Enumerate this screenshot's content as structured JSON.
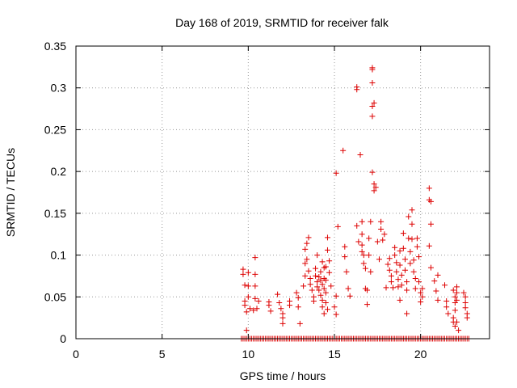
{
  "chart_data": {
    "type": "scatter",
    "title": "Day 168 of 2019, SRMTID for receiver falk",
    "xlabel": "GPS time / hours",
    "ylabel": "SRMTID / TECUs",
    "xlim": [
      0,
      24
    ],
    "ylim": [
      0,
      0.35
    ],
    "xticks": [
      0,
      5,
      10,
      15,
      20
    ],
    "yticks": [
      0,
      0.05,
      0.1,
      0.15,
      0.2,
      0.25,
      0.3,
      0.35
    ],
    "xtick_labels": [
      "0",
      "5",
      "10",
      "15",
      "20"
    ],
    "ytick_labels": [
      "0",
      "0.05",
      "0.1",
      "0.15",
      "0.2",
      "0.25",
      "0.3",
      "0.35"
    ],
    "grid": true,
    "marker": "+",
    "color": "#dd0000",
    "zero_band": {
      "x_start": 9.6,
      "x_end": 22.8,
      "step": 0.1,
      "y": 0
    },
    "points": [
      [
        9.7,
        0.083
      ],
      [
        9.7,
        0.077
      ],
      [
        9.8,
        0.064
      ],
      [
        9.8,
        0.045
      ],
      [
        9.8,
        0.04
      ],
      [
        9.9,
        0.032
      ],
      [
        9.9,
        0.01
      ],
      [
        10.0,
        0.079
      ],
      [
        10.0,
        0.063
      ],
      [
        10.0,
        0.05
      ],
      [
        10.1,
        0.036
      ],
      [
        10.4,
        0.097
      ],
      [
        10.4,
        0.077
      ],
      [
        10.4,
        0.063
      ],
      [
        10.4,
        0.048
      ],
      [
        10.3,
        0.034
      ],
      [
        10.5,
        0.036
      ],
      [
        10.6,
        0.045
      ],
      [
        11.2,
        0.044
      ],
      [
        11.2,
        0.04
      ],
      [
        11.3,
        0.033
      ],
      [
        11.7,
        0.053
      ],
      [
        11.8,
        0.043
      ],
      [
        11.9,
        0.036
      ],
      [
        12.0,
        0.03
      ],
      [
        12.0,
        0.025
      ],
      [
        12.0,
        0.018
      ],
      [
        12.4,
        0.045
      ],
      [
        12.4,
        0.04
      ],
      [
        12.8,
        0.055
      ],
      [
        12.9,
        0.049
      ],
      [
        12.9,
        0.038
      ],
      [
        13.0,
        0.018
      ],
      [
        13.2,
        0.063
      ],
      [
        13.3,
        0.075
      ],
      [
        13.3,
        0.09
      ],
      [
        13.3,
        0.107
      ],
      [
        13.4,
        0.114
      ],
      [
        13.5,
        0.121
      ],
      [
        13.4,
        0.095
      ],
      [
        13.5,
        0.081
      ],
      [
        13.6,
        0.072
      ],
      [
        13.6,
        0.065
      ],
      [
        13.7,
        0.058
      ],
      [
        13.8,
        0.05
      ],
      [
        13.8,
        0.045
      ],
      [
        13.9,
        0.084
      ],
      [
        13.9,
        0.075
      ],
      [
        14.0,
        0.068
      ],
      [
        14.0,
        0.1
      ],
      [
        14.0,
        0.062
      ],
      [
        14.1,
        0.074
      ],
      [
        14.1,
        0.058
      ],
      [
        14.2,
        0.08
      ],
      [
        14.2,
        0.07
      ],
      [
        14.2,
        0.052
      ],
      [
        14.3,
        0.092
      ],
      [
        14.3,
        0.065
      ],
      [
        14.3,
        0.046
      ],
      [
        14.3,
        0.038
      ],
      [
        14.4,
        0.085
      ],
      [
        14.4,
        0.072
      ],
      [
        14.4,
        0.06
      ],
      [
        14.4,
        0.03
      ],
      [
        14.5,
        0.086
      ],
      [
        14.5,
        0.07
      ],
      [
        14.5,
        0.055
      ],
      [
        14.6,
        0.121
      ],
      [
        14.6,
        0.106
      ],
      [
        14.5,
        0.043
      ],
      [
        14.6,
        0.035
      ],
      [
        14.7,
        0.093
      ],
      [
        14.7,
        0.079
      ],
      [
        14.8,
        0.063
      ],
      [
        15.0,
        0.038
      ],
      [
        15.1,
        0.051
      ],
      [
        15.1,
        0.029
      ],
      [
        15.2,
        0.134
      ],
      [
        15.1,
        0.198
      ],
      [
        15.5,
        0.225
      ],
      [
        15.6,
        0.11
      ],
      [
        15.6,
        0.098
      ],
      [
        15.7,
        0.08
      ],
      [
        15.8,
        0.06
      ],
      [
        15.9,
        0.051
      ],
      [
        16.3,
        0.301
      ],
      [
        16.3,
        0.298
      ],
      [
        16.3,
        0.135
      ],
      [
        16.4,
        0.116
      ],
      [
        16.5,
        0.22
      ],
      [
        16.6,
        0.14
      ],
      [
        16.6,
        0.125
      ],
      [
        16.6,
        0.112
      ],
      [
        16.6,
        0.104
      ],
      [
        16.7,
        0.1
      ],
      [
        16.7,
        0.09
      ],
      [
        16.8,
        0.084
      ],
      [
        16.8,
        0.06
      ],
      [
        16.9,
        0.058
      ],
      [
        16.9,
        0.041
      ],
      [
        17.0,
        0.12
      ],
      [
        17.0,
        0.1
      ],
      [
        17.1,
        0.08
      ],
      [
        17.1,
        0.14
      ],
      [
        17.2,
        0.324
      ],
      [
        17.2,
        0.322
      ],
      [
        17.2,
        0.306
      ],
      [
        17.2,
        0.278
      ],
      [
        17.3,
        0.282
      ],
      [
        17.2,
        0.266
      ],
      [
        17.2,
        0.199
      ],
      [
        17.3,
        0.185
      ],
      [
        17.4,
        0.181
      ],
      [
        17.3,
        0.177
      ],
      [
        17.5,
        0.116
      ],
      [
        17.6,
        0.095
      ],
      [
        17.7,
        0.14
      ],
      [
        17.7,
        0.131
      ],
      [
        17.8,
        0.118
      ],
      [
        17.9,
        0.125
      ],
      [
        18.0,
        0.061
      ],
      [
        18.1,
        0.089
      ],
      [
        18.2,
        0.096
      ],
      [
        18.2,
        0.082
      ],
      [
        18.3,
        0.075
      ],
      [
        18.3,
        0.068
      ],
      [
        18.4,
        0.061
      ],
      [
        18.5,
        0.109
      ],
      [
        18.5,
        0.1
      ],
      [
        18.6,
        0.091
      ],
      [
        18.6,
        0.08
      ],
      [
        18.7,
        0.071
      ],
      [
        18.7,
        0.062
      ],
      [
        18.8,
        0.105
      ],
      [
        18.8,
        0.088
      ],
      [
        18.9,
        0.076
      ],
      [
        18.9,
        0.064
      ],
      [
        18.8,
        0.046
      ],
      [
        19.0,
        0.126
      ],
      [
        19.0,
        0.108
      ],
      [
        19.1,
        0.095
      ],
      [
        19.1,
        0.082
      ],
      [
        19.2,
        0.068
      ],
      [
        19.2,
        0.058
      ],
      [
        19.2,
        0.03
      ],
      [
        19.3,
        0.146
      ],
      [
        19.3,
        0.12
      ],
      [
        19.4,
        0.104
      ],
      [
        19.4,
        0.09
      ],
      [
        19.5,
        0.154
      ],
      [
        19.5,
        0.137
      ],
      [
        19.5,
        0.119
      ],
      [
        19.6,
        0.094
      ],
      [
        19.6,
        0.08
      ],
      [
        19.7,
        0.072
      ],
      [
        19.7,
        0.06
      ],
      [
        19.8,
        0.12
      ],
      [
        19.8,
        0.11
      ],
      [
        19.9,
        0.098
      ],
      [
        19.9,
        0.068
      ],
      [
        20.0,
        0.055
      ],
      [
        20.0,
        0.044
      ],
      [
        20.1,
        0.06
      ],
      [
        20.1,
        0.05
      ],
      [
        20.5,
        0.18
      ],
      [
        20.5,
        0.166
      ],
      [
        20.6,
        0.164
      ],
      [
        20.6,
        0.137
      ],
      [
        20.5,
        0.111
      ],
      [
        20.6,
        0.085
      ],
      [
        20.8,
        0.069
      ],
      [
        20.9,
        0.057
      ],
      [
        21.0,
        0.076
      ],
      [
        21.0,
        0.046
      ],
      [
        21.4,
        0.064
      ],
      [
        21.5,
        0.045
      ],
      [
        21.5,
        0.038
      ],
      [
        21.6,
        0.03
      ],
      [
        21.9,
        0.058
      ],
      [
        22.0,
        0.05
      ],
      [
        22.0,
        0.043
      ],
      [
        22.0,
        0.034
      ],
      [
        21.9,
        0.025
      ],
      [
        21.9,
        0.02
      ],
      [
        22.0,
        0.015
      ],
      [
        22.1,
        0.062
      ],
      [
        22.1,
        0.055
      ],
      [
        22.1,
        0.046
      ],
      [
        22.1,
        0.02
      ],
      [
        22.2,
        0.01
      ],
      [
        22.5,
        0.055
      ],
      [
        22.6,
        0.05
      ],
      [
        22.6,
        0.043
      ],
      [
        22.6,
        0.037
      ],
      [
        22.7,
        0.03
      ],
      [
        22.7,
        0.025
      ]
    ]
  }
}
